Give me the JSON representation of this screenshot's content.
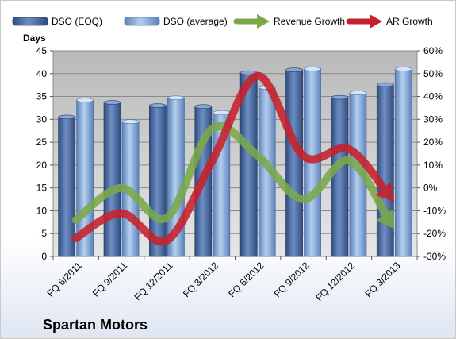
{
  "company_name": "Spartan Motors",
  "chart_data": {
    "type": "bar",
    "title": "",
    "ylabel": "Days",
    "ylim": [
      0,
      45
    ],
    "yticks": [
      0,
      5,
      10,
      15,
      20,
      25,
      30,
      35,
      40,
      45
    ],
    "y2lim": [
      -30,
      60
    ],
    "y2ticks": [
      "-30%",
      "-20%",
      "-10%",
      "0%",
      "10%",
      "20%",
      "30%",
      "40%",
      "50%",
      "60%"
    ],
    "y2ticks_values": [
      -30,
      -20,
      -10,
      0,
      10,
      20,
      30,
      40,
      50,
      60
    ],
    "categories": [
      "FQ 6/2011",
      "FQ 9/2011",
      "FQ 12/2011",
      "FQ 3/2012",
      "FQ 6/2012",
      "FQ 9/2012",
      "FQ 12/2012",
      "FQ 3/2013"
    ],
    "grid": true,
    "legend": "top",
    "series": [
      {
        "name": "DSO (EOQ)",
        "kind": "bar",
        "axis": "left",
        "color": "#4f6fa3",
        "values": [
          30.5,
          33.7,
          33.0,
          32.8,
          40.2,
          40.8,
          34.8,
          37.6
        ]
      },
      {
        "name": "DSO (average)",
        "kind": "bar",
        "axis": "left",
        "color": "#8eb2e0",
        "values": [
          34.2,
          29.5,
          34.7,
          31.5,
          37.0,
          41.0,
          35.8,
          41.0
        ]
      },
      {
        "name": "Revenue Growth",
        "kind": "arrow-line",
        "axis": "right",
        "color": "#7aa84a",
        "values": [
          -14,
          0,
          -13,
          26,
          14,
          -5,
          12,
          -18
        ]
      },
      {
        "name": "AR Growth",
        "kind": "arrow-line",
        "axis": "right",
        "color": "#c8202a",
        "values": [
          -22,
          -11,
          -23,
          12,
          49,
          14,
          17,
          -6
        ]
      }
    ]
  }
}
